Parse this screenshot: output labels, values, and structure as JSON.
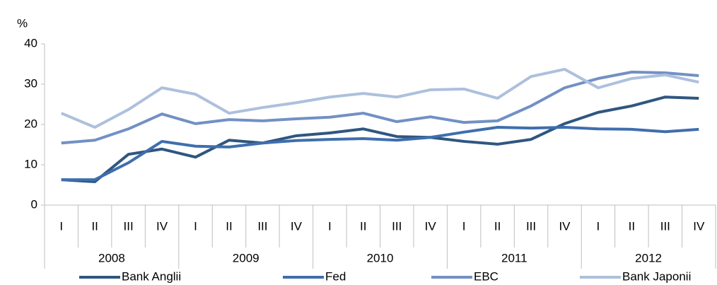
{
  "chart_data": {
    "type": "line",
    "y_label": "%",
    "categories": [
      "I",
      "II",
      "III",
      "IV",
      "I",
      "II",
      "III",
      "IV",
      "I",
      "II",
      "III",
      "IV",
      "I",
      "II",
      "III",
      "IV",
      "I",
      "II",
      "III",
      "IV"
    ],
    "category_groups": [
      "2008",
      "2009",
      "2010",
      "2011",
      "2012"
    ],
    "series": [
      {
        "name": "Bank Anglii",
        "color": "#2f5680",
        "values": [
          6.3,
          5.8,
          12.6,
          13.9,
          11.9,
          16.1,
          15.4,
          17.2,
          17.9,
          18.9,
          17.0,
          16.8,
          15.8,
          15.1,
          16.3,
          20.2,
          23.0,
          24.6,
          26.8,
          26.5
        ]
      },
      {
        "name": "Fed",
        "color": "#3f6ead",
        "values": [
          6.3,
          6.3,
          10.5,
          15.8,
          14.6,
          14.4,
          15.4,
          16.0,
          16.3,
          16.5,
          16.1,
          16.8,
          18.1,
          19.3,
          19.1,
          19.3,
          18.9,
          18.8,
          18.2,
          18.8
        ]
      },
      {
        "name": "EBC",
        "color": "#7290c4",
        "values": [
          15.4,
          16.1,
          18.9,
          22.6,
          20.2,
          21.2,
          20.9,
          21.4,
          21.8,
          22.8,
          20.7,
          21.9,
          20.5,
          20.9,
          24.6,
          29.1,
          31.4,
          33.0,
          32.8,
          32.1
        ]
      },
      {
        "name": "Bank Japonii",
        "color": "#adc0dd",
        "values": [
          22.8,
          19.3,
          23.7,
          29.1,
          27.5,
          22.8,
          24.2,
          25.4,
          26.8,
          27.7,
          26.8,
          28.6,
          28.8,
          26.5,
          31.9,
          33.7,
          29.1,
          31.4,
          32.3,
          30.5
        ]
      }
    ],
    "ylim": [
      0,
      40
    ],
    "yticks": [
      0,
      10,
      20,
      30,
      40
    ],
    "grid": false
  }
}
